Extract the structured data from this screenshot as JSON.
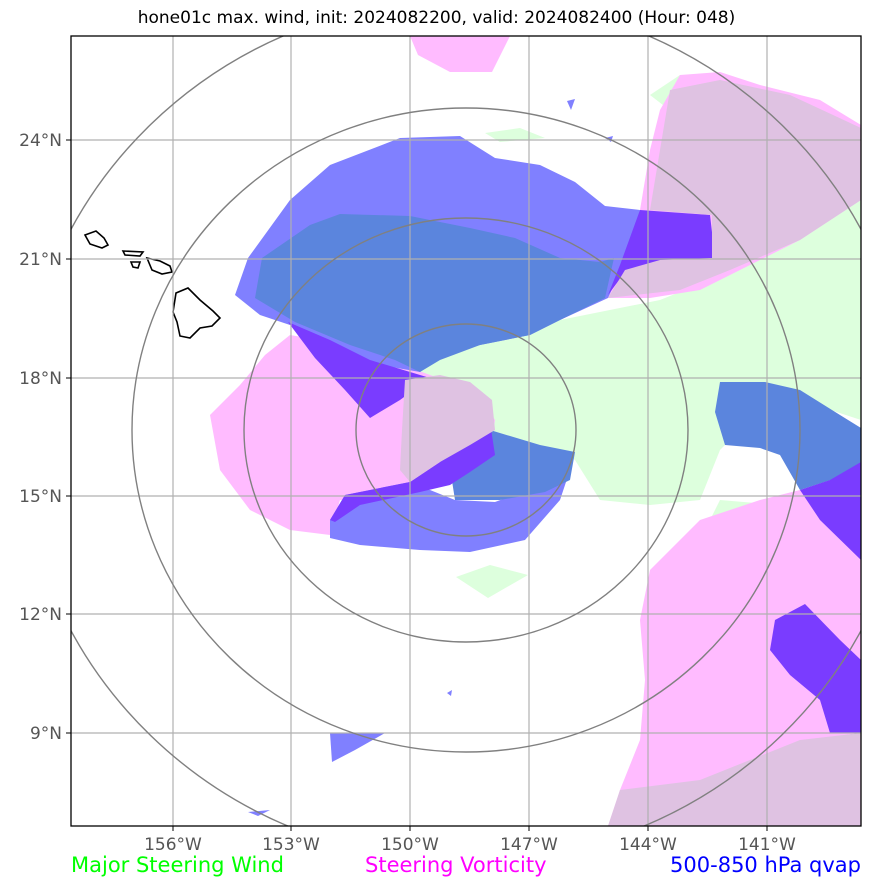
{
  "title": "hone01c max. wind, init: 2024082200, valid: 2024082400 (Hour: 048)",
  "axes": {
    "lat_labels": [
      "24°N",
      "21°N",
      "18°N",
      "15°N",
      "12°N",
      "9°N"
    ],
    "lon_labels": [
      "156°W",
      "153°W",
      "150°W",
      "147°W",
      "144°W",
      "141°W"
    ]
  },
  "legend": {
    "wind": "Major Steering Wind",
    "vorticity": "Steering Vorticity",
    "qvap": "500-850 hPa qvap"
  },
  "colors": {
    "wind": "#00ff00",
    "wind_fill": "#ddffdd",
    "vorticity": "#ff00ff",
    "vorticity_fill": "#ffbbff",
    "qvap": "#0000ff",
    "qvap_fill": "#8080ff",
    "qvap_dark": "#7a3cff",
    "overlap": "#5b85dd",
    "range_rings": "#808080",
    "grid": "#b0b0b0"
  }
}
